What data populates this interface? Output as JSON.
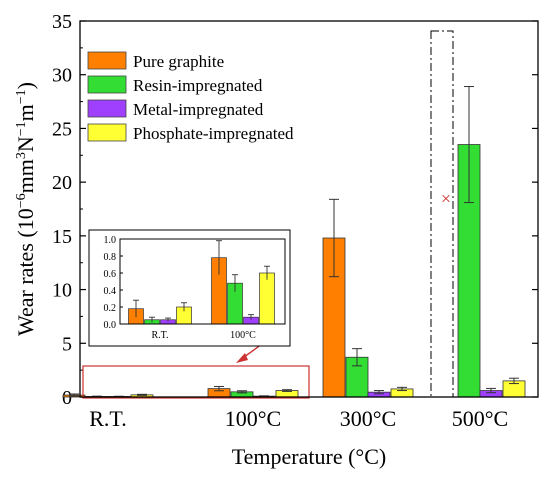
{
  "chart_data": {
    "type": "bar",
    "xlabel": "Temperature (°C)",
    "ylabel_parts": [
      "Wear rates (10",
      "−6",
      "mm",
      "3",
      "N",
      "−1",
      "m",
      "−1",
      ")"
    ],
    "ylim": [
      0,
      35
    ],
    "yticks": [
      0,
      5,
      10,
      15,
      20,
      25,
      30,
      35
    ],
    "categories": [
      "R.T.",
      "100°C",
      "300°C",
      "500°C"
    ],
    "colors": [
      "#ff8000",
      "#33dd33",
      "#a040ff",
      "#ffff33"
    ],
    "series": [
      {
        "name": "Pure graphite",
        "values": [
          0.18,
          0.78,
          14.8,
          null
        ],
        "errors": [
          0.1,
          0.2,
          3.6,
          null
        ]
      },
      {
        "name": "Resin-impregnated",
        "values": [
          0.05,
          0.48,
          3.7,
          23.5
        ],
        "errors": [
          0.03,
          0.1,
          0.8,
          5.4
        ]
      },
      {
        "name": "Metal-impregnated",
        "values": [
          0.05,
          0.08,
          0.45,
          0.6
        ],
        "errors": [
          0.02,
          0.03,
          0.15,
          0.2
        ]
      },
      {
        "name": "Phosphate-impregnated",
        "values": [
          0.2,
          0.6,
          0.75,
          1.5
        ],
        "errors": [
          0.05,
          0.08,
          0.15,
          0.25
        ]
      }
    ],
    "annotation_marker": {
      "category": "500°C",
      "series": "Pure graphite",
      "symbol": "×",
      "y": 18.5
    },
    "inset": {
      "categories": [
        "R.T.",
        "100°C"
      ],
      "ylim": [
        0,
        1.0
      ],
      "yticks": [
        "0.0",
        "0.2",
        "0.4",
        "0.6",
        "0.8",
        "1.0"
      ]
    }
  }
}
